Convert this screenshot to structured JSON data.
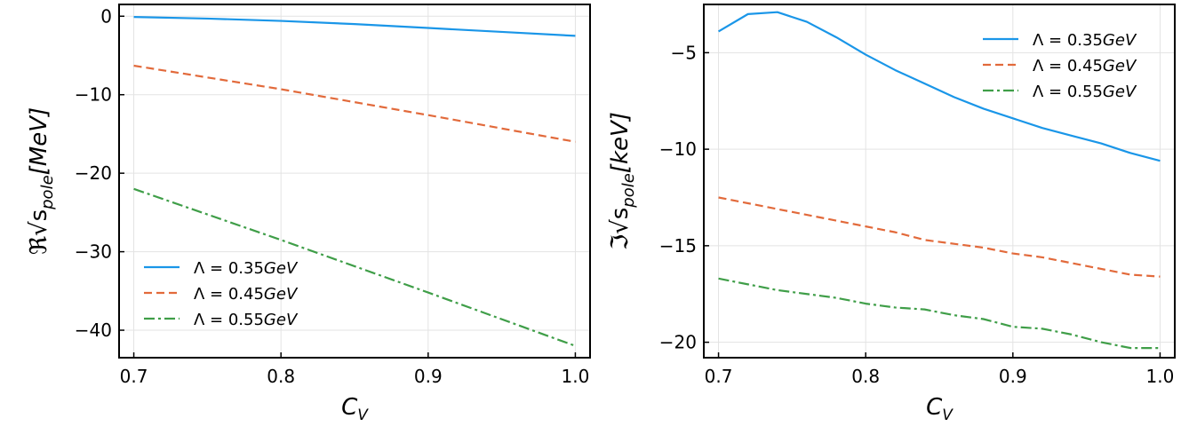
{
  "chart_data": [
    {
      "type": "line",
      "panel": "left",
      "xlabel": "C_V",
      "ylabel": "ℜ√s_pole[MeV]",
      "xlim": [
        0.69,
        1.01
      ],
      "ylim": [
        -43.5,
        1.5
      ],
      "xticks": [
        0.7,
        0.8,
        0.9,
        1.0
      ],
      "xtick_labels": [
        "0.7",
        "0.8",
        "0.9",
        "1.0"
      ],
      "yticks": [
        0,
        -10,
        -20,
        -30,
        -40
      ],
      "ytick_labels": [
        "0",
        "−10",
        "−20",
        "−30",
        "−40"
      ],
      "grid": true,
      "legend_position": "bottom-left",
      "series": [
        {
          "name": "Λ = 0.35GeV",
          "color": "#1a96e8",
          "dash": "solid",
          "x": [
            0.7,
            0.75,
            0.8,
            0.85,
            0.9,
            0.95,
            1.0
          ],
          "y": [
            -0.1,
            -0.3,
            -0.6,
            -1.0,
            -1.5,
            -2.0,
            -2.5
          ]
        },
        {
          "name": "Λ = 0.45GeV",
          "color": "#e26a3b",
          "dash": "dashed",
          "x": [
            0.7,
            0.8,
            0.9,
            1.0
          ],
          "y": [
            -6.3,
            -9.3,
            -12.6,
            -16.0
          ]
        },
        {
          "name": "Λ = 0.55GeV",
          "color": "#3f9e48",
          "dash": "dashdot",
          "x": [
            0.7,
            0.8,
            0.9,
            1.0
          ],
          "y": [
            -22.0,
            -28.5,
            -35.2,
            -42.0
          ]
        }
      ]
    },
    {
      "type": "line",
      "panel": "right",
      "xlabel": "C_V",
      "ylabel": "ℑ√s_pole[keV]",
      "xlim": [
        0.69,
        1.01
      ],
      "ylim": [
        -20.8,
        -2.5
      ],
      "xticks": [
        0.7,
        0.8,
        0.9,
        1.0
      ],
      "xtick_labels": [
        "0.7",
        "0.8",
        "0.9",
        "1.0"
      ],
      "yticks": [
        -5,
        -10,
        -15,
        -20
      ],
      "ytick_labels": [
        "−5",
        "−10",
        "−15",
        "−20"
      ],
      "grid": true,
      "legend_position": "top-right",
      "series": [
        {
          "name": "Λ = 0.35GeV",
          "color": "#1a96e8",
          "dash": "solid",
          "x": [
            0.7,
            0.72,
            0.74,
            0.76,
            0.78,
            0.8,
            0.82,
            0.84,
            0.86,
            0.88,
            0.9,
            0.92,
            0.94,
            0.96,
            0.98,
            1.0
          ],
          "y": [
            -3.9,
            -3.0,
            -2.9,
            -3.4,
            -4.2,
            -5.1,
            -5.9,
            -6.6,
            -7.3,
            -7.9,
            -8.4,
            -8.9,
            -9.3,
            -9.7,
            -10.2,
            -10.6
          ]
        },
        {
          "name": "Λ = 0.45GeV",
          "color": "#e26a3b",
          "dash": "dashed",
          "x": [
            0.7,
            0.72,
            0.74,
            0.76,
            0.78,
            0.8,
            0.82,
            0.84,
            0.86,
            0.88,
            0.9,
            0.92,
            0.94,
            0.96,
            0.98,
            1.0
          ],
          "y": [
            -12.5,
            -12.8,
            -13.1,
            -13.4,
            -13.7,
            -14.0,
            -14.3,
            -14.7,
            -14.9,
            -15.1,
            -15.4,
            -15.6,
            -15.9,
            -16.2,
            -16.5,
            -16.6
          ]
        },
        {
          "name": "Λ = 0.55GeV",
          "color": "#3f9e48",
          "dash": "dashdot",
          "x": [
            0.7,
            0.72,
            0.74,
            0.76,
            0.78,
            0.8,
            0.82,
            0.84,
            0.86,
            0.88,
            0.9,
            0.92,
            0.94,
            0.96,
            0.98,
            1.0
          ],
          "y": [
            -16.7,
            -17.0,
            -17.3,
            -17.5,
            -17.7,
            -18.0,
            -18.2,
            -18.3,
            -18.6,
            -18.8,
            -19.2,
            -19.3,
            -19.6,
            -20.0,
            -20.3,
            -20.3
          ]
        }
      ]
    }
  ]
}
